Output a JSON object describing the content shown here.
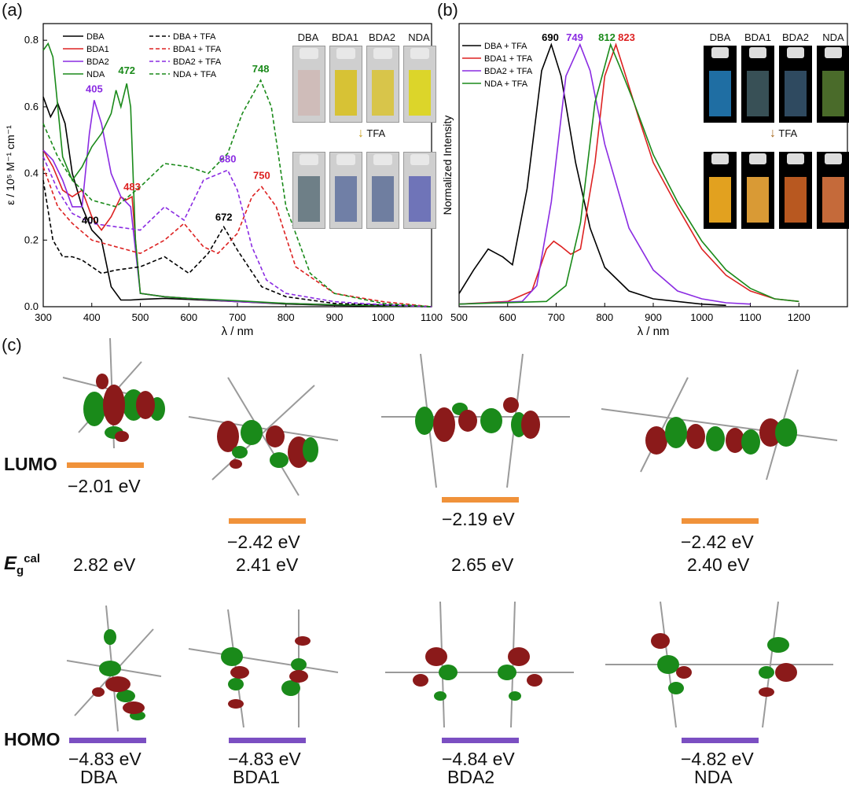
{
  "panel_labels": {
    "a": "(a)",
    "b": "(b)",
    "c": "(c)"
  },
  "colors": {
    "DBA": "#000000",
    "BDA1": "#dd2222",
    "BDA2": "#8a2be2",
    "NDA": "#1a8a1a",
    "lumo": "#f0923a",
    "homo": "#7b4fc2"
  },
  "chart_data": [
    {
      "type": "line",
      "xlabel": "λ / nm",
      "ylabel": "ε / 10⁵ M⁻¹ cm⁻¹",
      "xlim": [
        300,
        1100
      ],
      "ylim": [
        0,
        0.85
      ],
      "xticks": [
        "300",
        "400",
        "500",
        "600",
        "700",
        "800",
        "900",
        "1000",
        "1100"
      ],
      "yticks": [
        "0.0",
        "0.2",
        "0.4",
        "0.6",
        "0.8"
      ],
      "legend": [
        "DBA",
        "BDA1",
        "BDA2",
        "NDA",
        "DBA   + TFA",
        "BDA1 + TFA",
        "BDA2 + TFA",
        "NDA   + TFA"
      ],
      "annotations": [
        {
          "text": "405",
          "series": "BDA2",
          "x": 405,
          "y": 0.62
        },
        {
          "text": "472",
          "series": "NDA",
          "x": 472,
          "y": 0.67
        },
        {
          "text": "483",
          "series": "BDA1",
          "x": 483,
          "y": 0.33
        },
        {
          "text": "400",
          "series": "DBA",
          "x": 400,
          "y": 0.23
        },
        {
          "text": "672",
          "series": "DBA + TFA",
          "x": 672,
          "y": 0.24
        },
        {
          "text": "680",
          "series": "BDA2 + TFA",
          "x": 680,
          "y": 0.41
        },
        {
          "text": "750",
          "series": "BDA1 + TFA",
          "x": 750,
          "y": 0.36
        },
        {
          "text": "748",
          "series": "NDA + TFA",
          "x": 748,
          "y": 0.68
        }
      ],
      "series": [
        {
          "name": "DBA",
          "style": "solid",
          "color": "#000000",
          "x": [
            300,
            315,
            330,
            345,
            360,
            380,
            400,
            420,
            440,
            460,
            480,
            500,
            550,
            600,
            700,
            800,
            900,
            1000,
            1100
          ],
          "y": [
            0.63,
            0.57,
            0.61,
            0.55,
            0.4,
            0.3,
            0.23,
            0.2,
            0.06,
            0.02,
            0.02,
            0.022,
            0.025,
            0.022,
            0.015,
            0.008,
            0.004,
            0.002,
            0.0
          ]
        },
        {
          "name": "BDA1",
          "style": "solid",
          "color": "#dd2222",
          "x": [
            300,
            320,
            340,
            360,
            380,
            400,
            420,
            440,
            460,
            470,
            483,
            490,
            500,
            550,
            600,
            700,
            800,
            900,
            1000,
            1100
          ],
          "y": [
            0.47,
            0.42,
            0.35,
            0.33,
            0.35,
            0.27,
            0.23,
            0.27,
            0.33,
            0.32,
            0.33,
            0.2,
            0.04,
            0.03,
            0.025,
            0.015,
            0.01,
            0.006,
            0.003,
            0.0
          ]
        },
        {
          "name": "BDA2",
          "style": "solid",
          "color": "#8a2be2",
          "x": [
            300,
            320,
            340,
            360,
            380,
            395,
            405,
            420,
            440,
            460,
            480,
            500,
            550,
            600,
            700,
            800,
            900,
            1000,
            1100
          ],
          "y": [
            0.47,
            0.44,
            0.38,
            0.3,
            0.3,
            0.52,
            0.62,
            0.55,
            0.4,
            0.33,
            0.3,
            0.04,
            0.03,
            0.025,
            0.015,
            0.01,
            0.006,
            0.003,
            0.0
          ]
        },
        {
          "name": "NDA",
          "style": "solid",
          "color": "#1a8a1a",
          "x": [
            300,
            310,
            320,
            340,
            360,
            380,
            400,
            420,
            440,
            450,
            460,
            472,
            480,
            490,
            500,
            550,
            600,
            700,
            800,
            900,
            1000,
            1100
          ],
          "y": [
            0.77,
            0.79,
            0.75,
            0.45,
            0.38,
            0.42,
            0.48,
            0.52,
            0.58,
            0.65,
            0.6,
            0.67,
            0.6,
            0.2,
            0.04,
            0.03,
            0.025,
            0.018,
            0.01,
            0.006,
            0.003,
            0.0
          ]
        },
        {
          "name": "DBA + TFA",
          "style": "dashed",
          "color": "#000000",
          "x": [
            300,
            320,
            340,
            360,
            380,
            420,
            450,
            500,
            550,
            600,
            640,
            672,
            700,
            750,
            800,
            900,
            1000,
            1100
          ],
          "y": [
            0.38,
            0.2,
            0.15,
            0.15,
            0.14,
            0.1,
            0.11,
            0.12,
            0.15,
            0.1,
            0.16,
            0.24,
            0.17,
            0.06,
            0.03,
            0.01,
            0.005,
            0.0
          ]
        },
        {
          "name": "BDA1 + TFA",
          "style": "dashed",
          "color": "#dd2222",
          "x": [
            300,
            330,
            360,
            400,
            450,
            500,
            550,
            590,
            630,
            660,
            700,
            730,
            750,
            780,
            820,
            900,
            1000,
            1100
          ],
          "y": [
            0.42,
            0.3,
            0.25,
            0.2,
            0.18,
            0.16,
            0.2,
            0.25,
            0.18,
            0.16,
            0.22,
            0.33,
            0.36,
            0.3,
            0.12,
            0.04,
            0.015,
            0.0
          ]
        },
        {
          "name": "BDA2 + TFA",
          "style": "dashed",
          "color": "#8a2be2",
          "x": [
            300,
            330,
            360,
            400,
            450,
            500,
            550,
            590,
            630,
            680,
            700,
            730,
            760,
            800,
            900,
            1000,
            1100
          ],
          "y": [
            0.45,
            0.35,
            0.28,
            0.25,
            0.24,
            0.23,
            0.3,
            0.26,
            0.38,
            0.41,
            0.35,
            0.18,
            0.08,
            0.04,
            0.015,
            0.006,
            0.0
          ]
        },
        {
          "name": "NDA + TFA",
          "style": "dashed",
          "color": "#1a8a1a",
          "x": [
            300,
            330,
            360,
            400,
            450,
            500,
            550,
            600,
            640,
            680,
            710,
            748,
            770,
            800,
            850,
            900,
            1000,
            1100
          ],
          "y": [
            0.55,
            0.45,
            0.38,
            0.32,
            0.3,
            0.36,
            0.43,
            0.42,
            0.4,
            0.46,
            0.58,
            0.68,
            0.6,
            0.3,
            0.1,
            0.04,
            0.01,
            0.0
          ]
        }
      ]
    },
    {
      "type": "line",
      "xlabel": "λ / nm",
      "ylabel": "Normalized Intensity",
      "xlim": [
        500,
        1300
      ],
      "ylim": [
        0,
        1.05
      ],
      "xticks": [
        "500",
        "600",
        "700",
        "800",
        "900",
        "1000",
        "1100",
        "1200"
      ],
      "legend": [
        "DBA   + TFA",
        "BDA1 + TFA",
        "BDA2 + TFA",
        "NDA   + TFA"
      ],
      "annotations": [
        {
          "text": "690",
          "series": "DBA + TFA"
        },
        {
          "text": "749",
          "series": "BDA2 + TFA"
        },
        {
          "text": "812",
          "series": "NDA + TFA"
        },
        {
          "text": "823",
          "series": "BDA1 + TFA"
        }
      ],
      "series": [
        {
          "name": "DBA + TFA",
          "color": "#000000",
          "x": [
            500,
            530,
            560,
            590,
            610,
            640,
            670,
            690,
            710,
            740,
            770,
            800,
            850,
            900,
            1000,
            1050
          ],
          "y": [
            0.05,
            0.14,
            0.22,
            0.19,
            0.16,
            0.45,
            0.9,
            1.0,
            0.88,
            0.55,
            0.3,
            0.15,
            0.06,
            0.03,
            0.01,
            0.005
          ]
        },
        {
          "name": "BDA1 + TFA",
          "color": "#dd2222",
          "x": [
            500,
            600,
            650,
            680,
            695,
            710,
            730,
            750,
            780,
            800,
            823,
            840,
            870,
            900,
            950,
            1000,
            1050,
            1100,
            1150,
            1200
          ],
          "y": [
            0.01,
            0.02,
            0.06,
            0.22,
            0.25,
            0.23,
            0.2,
            0.22,
            0.55,
            0.88,
            1.0,
            0.9,
            0.72,
            0.55,
            0.38,
            0.22,
            0.12,
            0.06,
            0.03,
            0.02
          ]
        },
        {
          "name": "BDA2 + TFA",
          "color": "#8a2be2",
          "x": [
            500,
            630,
            660,
            690,
            720,
            749,
            770,
            800,
            850,
            900,
            950,
            1000,
            1050,
            1100
          ],
          "y": [
            0.01,
            0.02,
            0.08,
            0.4,
            0.88,
            1.0,
            0.9,
            0.62,
            0.3,
            0.14,
            0.06,
            0.03,
            0.015,
            0.01
          ]
        },
        {
          "name": "NDA + TFA",
          "color": "#1a8a1a",
          "x": [
            500,
            680,
            720,
            750,
            780,
            812,
            830,
            860,
            900,
            950,
            1000,
            1050,
            1100,
            1150,
            1200
          ],
          "y": [
            0.01,
            0.02,
            0.08,
            0.32,
            0.78,
            1.0,
            0.92,
            0.78,
            0.58,
            0.4,
            0.25,
            0.14,
            0.07,
            0.03,
            0.02
          ]
        }
      ]
    }
  ],
  "panel_a_photos": {
    "top_labels": [
      "DBA",
      "BDA1",
      "BDA2",
      "NDA"
    ],
    "arrow_text": "TFA",
    "top_colors": [
      "#cfbcb9",
      "#d7c235",
      "#d8c54a",
      "#dcd52a"
    ],
    "bottom_colors": [
      "#6e7f87",
      "#707fa6",
      "#6f7ea0",
      "#6f74b8"
    ]
  },
  "panel_b_photos": {
    "top_labels": [
      "DBA",
      "BDA1",
      "BDA2",
      "NDA"
    ],
    "arrow_text": "TFA",
    "top_colors": [
      "#1f6ea3",
      "#385056",
      "#2f4a60",
      "#4a6b2a"
    ],
    "bottom_colors": [
      "#e2a11f",
      "#d99a35",
      "#b85820",
      "#c56a3a"
    ]
  },
  "panel_c": {
    "lumo_label": "LUMO",
    "homo_label": "HOMO",
    "gap_label_main": "E",
    "gap_label_sub": "g",
    "gap_label_sup": "cal",
    "molecules": [
      {
        "name": "DBA",
        "lumo": "−2.01 eV",
        "gap": "2.82 eV",
        "homo": "−4.83 eV"
      },
      {
        "name": "BDA1",
        "lumo": "−2.42 eV",
        "gap": "2.41 eV",
        "homo": "−4.83 eV"
      },
      {
        "name": "BDA2",
        "lumo": "−2.19 eV",
        "gap": "2.65 eV",
        "homo": "−4.84 eV"
      },
      {
        "name": "NDA",
        "lumo": "−2.42 eV",
        "gap": "2.40 eV",
        "homo": "−4.82 eV"
      }
    ]
  }
}
